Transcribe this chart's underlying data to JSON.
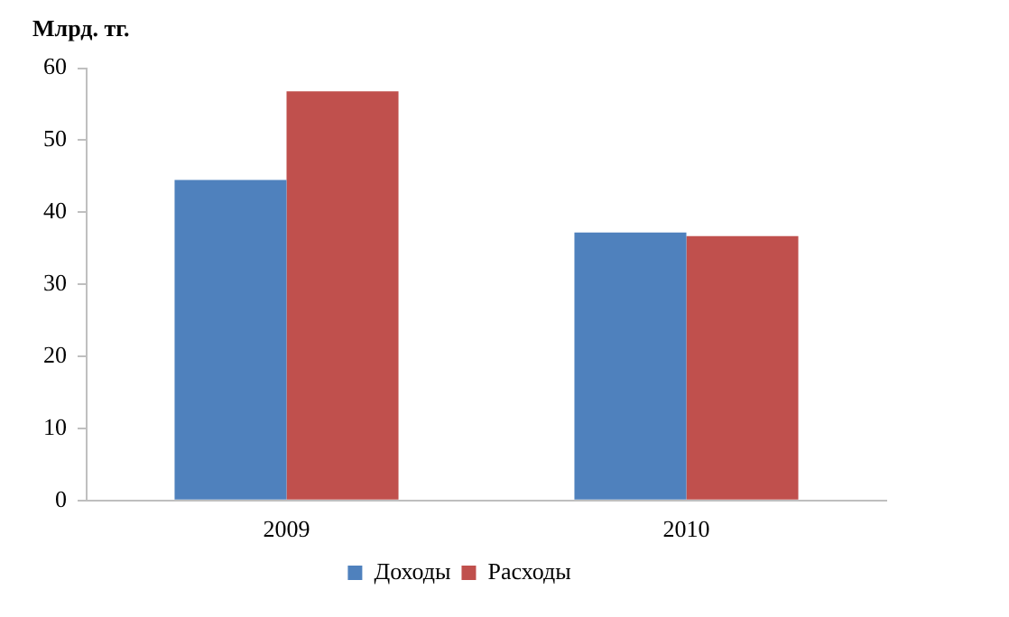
{
  "chart_data": {
    "type": "bar",
    "ylabel": "Млрд. тг.",
    "categories": [
      "2009",
      "2010"
    ],
    "series": [
      {
        "name": "Доходы",
        "color": "#4f81bd",
        "values": [
          44.5,
          37.2
        ]
      },
      {
        "name": "Расходы",
        "color": "#c0504d",
        "values": [
          56.8,
          36.7
        ]
      }
    ],
    "ylim": [
      0,
      60
    ],
    "yticks": [
      0,
      10,
      20,
      30,
      40,
      50,
      60
    ],
    "grid": false,
    "legend": "bottom"
  }
}
